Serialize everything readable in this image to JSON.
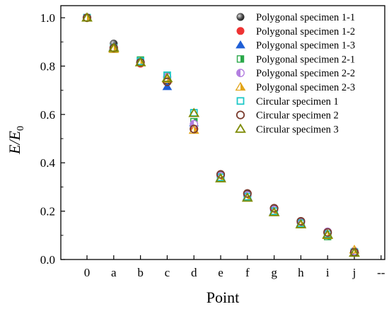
{
  "chart_data": {
    "type": "scatter",
    "title": "",
    "xlabel": "Point",
    "ylabel_main": "E/E",
    "ylabel_sub": "0",
    "categories": [
      "0",
      "a",
      "b",
      "c",
      "d",
      "e",
      "f",
      "g",
      "h",
      "i",
      "j",
      "--"
    ],
    "ylim": [
      0,
      1.05
    ],
    "yticks": [
      0.0,
      0.2,
      0.4,
      0.6,
      0.8,
      1.0
    ],
    "ytick_labels": [
      "0.0",
      "0.2",
      "0.4",
      "0.6",
      "0.8",
      "1.0"
    ],
    "grid": false,
    "legend_position": "top-right",
    "series": [
      {
        "name": "Polygonal specimen 1-1",
        "marker": "sphere",
        "color": "#555555",
        "values": [
          1.0,
          0.893,
          0.82,
          0.74,
          0.56,
          0.35,
          0.27,
          0.21,
          0.155,
          0.11,
          0.03
        ]
      },
      {
        "name": "Polygonal specimen 1-2",
        "marker": "circle-filled",
        "color": "#ee3333",
        "values": [
          1.0,
          0.875,
          0.81,
          0.75,
          0.54,
          0.345,
          0.265,
          0.205,
          0.15,
          0.11,
          0.035
        ]
      },
      {
        "name": "Polygonal specimen 1-3",
        "marker": "triangle-filled",
        "color": "#1f5fd6",
        "values": [
          1.0,
          0.88,
          0.815,
          0.715,
          0.565,
          0.34,
          0.26,
          0.2,
          0.15,
          0.105,
          0.03
        ]
      },
      {
        "name": "Polygonal specimen 2-1",
        "marker": "square-half",
        "color": "#2aa84a",
        "values": [
          1.0,
          0.87,
          0.825,
          0.76,
          0.57,
          0.34,
          0.26,
          0.2,
          0.15,
          0.095,
          0.03
        ]
      },
      {
        "name": "Polygonal specimen 2-2",
        "marker": "circle-half",
        "color": "#b37fe0",
        "values": [
          1.0,
          0.872,
          0.815,
          0.755,
          0.56,
          0.345,
          0.265,
          0.205,
          0.152,
          0.115,
          0.035
        ]
      },
      {
        "name": "Polygonal specimen 2-3",
        "marker": "triangle-half",
        "color": "#e2a51a",
        "values": [
          1.0,
          0.87,
          0.815,
          0.745,
          0.535,
          0.335,
          0.255,
          0.195,
          0.145,
          0.1,
          0.04
        ]
      },
      {
        "name": "Circular specimen 1",
        "marker": "square-open",
        "color": "#1ec8c8",
        "values": [
          1.0,
          0.875,
          0.82,
          0.762,
          0.607,
          0.34,
          0.26,
          0.2,
          0.15,
          0.105,
          0.03
        ]
      },
      {
        "name": "Circular specimen 2",
        "marker": "circle-open",
        "color": "#7a3b2e",
        "values": [
          1.0,
          0.875,
          0.815,
          0.735,
          0.54,
          0.352,
          0.273,
          0.212,
          0.158,
          0.112,
          0.03
        ]
      },
      {
        "name": "Circular specimen 3",
        "marker": "triangle-open",
        "color": "#7d8a00",
        "values": [
          1.0,
          0.875,
          0.815,
          0.75,
          0.605,
          0.335,
          0.255,
          0.195,
          0.145,
          0.102,
          0.027
        ]
      }
    ]
  }
}
